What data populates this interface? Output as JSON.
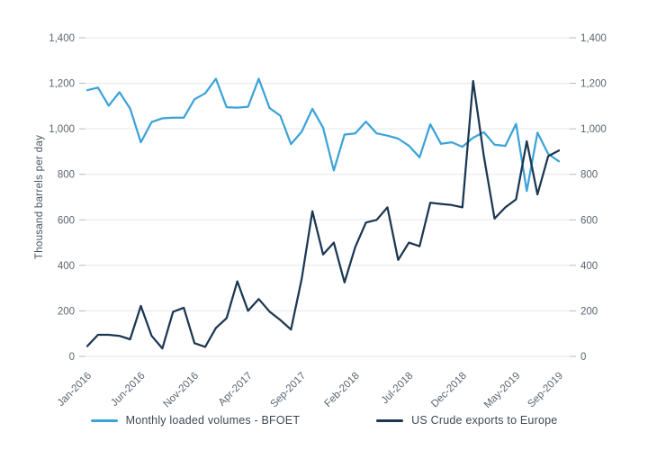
{
  "axis": {
    "y_title": "Thousand barrels per day",
    "y_tick_labels": [
      "0",
      "200",
      "400",
      "600",
      "800",
      "1,000",
      "1,200",
      "1,400"
    ],
    "y_tick_values": [
      0,
      200,
      400,
      600,
      800,
      1000,
      1200,
      1400
    ],
    "x_tick_labels": [
      "Jan-2016",
      "Jun-2016",
      "Nov-2016",
      "Apr-2017",
      "Sep-2017",
      "Feb-2018",
      "Jul-2018",
      "Dec-2018",
      "May-2019",
      "Sep-2019"
    ],
    "x_tick_indices": [
      0,
      5,
      10,
      15,
      20,
      25,
      30,
      35,
      40,
      44
    ]
  },
  "legend": [
    {
      "label": "Monthly loaded volumes - BFOET",
      "color": "#3BA3D8"
    },
    {
      "label": "US Crude exports to Europe",
      "color": "#1B3752"
    }
  ],
  "colors": {
    "grid": "#e4e7ea",
    "tick": "#b3bbc2",
    "tick_text": "#5a6570",
    "axis_title_text": "#46525e",
    "legend_text": "#3d4954",
    "background": "#ffffff",
    "series_bfoet": "#3BA3D8",
    "series_us": "#1B3752"
  },
  "chart_data": {
    "type": "line",
    "title": "",
    "xlabel": "",
    "ylabel": "Thousand barrels per day",
    "ylim": [
      0,
      1400
    ],
    "y_step": 200,
    "grid": "horizontal-only",
    "legend_position": "bottom",
    "dual_y_axis": true,
    "x": [
      "Jan-2016",
      "Feb-2016",
      "Mar-2016",
      "Apr-2016",
      "May-2016",
      "Jun-2016",
      "Jul-2016",
      "Aug-2016",
      "Sep-2016",
      "Oct-2016",
      "Nov-2016",
      "Dec-2016",
      "Jan-2017",
      "Feb-2017",
      "Mar-2017",
      "Apr-2017",
      "May-2017",
      "Jun-2017",
      "Jul-2017",
      "Aug-2017",
      "Sep-2017",
      "Oct-2017",
      "Nov-2017",
      "Dec-2017",
      "Jan-2018",
      "Feb-2018",
      "Mar-2018",
      "Apr-2018",
      "May-2018",
      "Jun-2018",
      "Jul-2018",
      "Aug-2018",
      "Sep-2018",
      "Oct-2018",
      "Nov-2018",
      "Dec-2018",
      "Jan-2019",
      "Feb-2019",
      "Mar-2019",
      "Apr-2019",
      "May-2019",
      "Jun-2019",
      "Jul-2019",
      "Aug-2019",
      "Sep-2019"
    ],
    "series": [
      {
        "name": "Monthly loaded volumes - BFOET",
        "color": "#3BA3D8",
        "values": [
          1170,
          1181,
          1102,
          1161,
          1089,
          941,
          1030,
          1046,
          1049,
          1049,
          1130,
          1156,
          1220,
          1095,
          1093,
          1097,
          1220,
          1091,
          1058,
          933,
          987,
          1088,
          1005,
          817,
          975,
          980,
          1032,
          980,
          970,
          957,
          926,
          875,
          1020,
          934,
          941,
          921,
          961,
          985,
          930,
          925,
          1022,
          727,
          983,
          890,
          857
        ]
      },
      {
        "name": "US Crude exports to Europe",
        "color": "#1B3752",
        "values": [
          45,
          95,
          95,
          90,
          75,
          222,
          90,
          35,
          196,
          214,
          58,
          42,
          125,
          168,
          330,
          200,
          252,
          197,
          160,
          118,
          340,
          638,
          448,
          500,
          325,
          480,
          588,
          600,
          655,
          424,
          500,
          484,
          675,
          670,
          665,
          655,
          1210,
          880,
          606,
          655,
          690,
          945,
          712,
          880,
          905
        ]
      }
    ]
  }
}
